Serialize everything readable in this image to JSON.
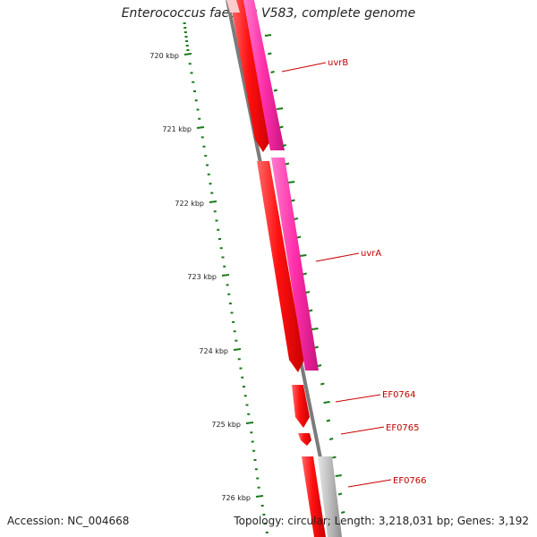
{
  "title": "Enterococcus faecalis V583, complete genome",
  "footer": {
    "accession": "Accession: NC_004668",
    "summary": "Topology: circular; Length: 3,218,031 bp; Genes: 3,192"
  },
  "ticks": [
    "720 kbp",
    "721 kbp",
    "722 kbp",
    "723 kbp",
    "724 kbp",
    "725 kbp",
    "726 kbp"
  ],
  "genes": [
    "uvrB",
    "uvrA",
    "EF0764",
    "EF0765",
    "EF0766"
  ],
  "colors": {
    "forward_cds": "#ff0000",
    "reverse_feature": "#ff33aa",
    "backbone": "#777777",
    "scale_ticks": "#1a7a1a",
    "label": "#c00000",
    "gray_feature": "#bbbbbb"
  }
}
